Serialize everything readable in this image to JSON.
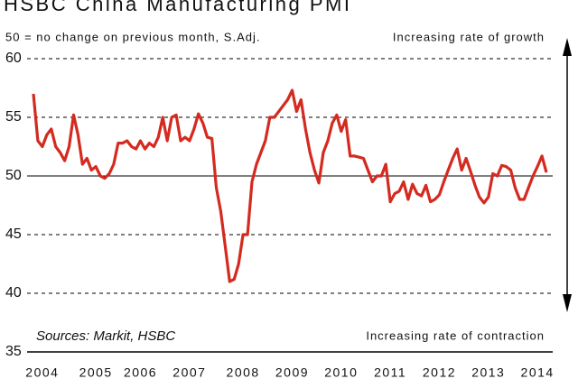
{
  "chart_data": {
    "type": "line",
    "title": "HSBC China Manufacturing PMI",
    "subtitle": "50 = no change on previous month, S.Adj.",
    "annotations": {
      "growth": "Increasing rate of growth",
      "contraction": "Increasing rate of contraction",
      "source": "Sources: Markit, HSBC"
    },
    "categories": [
      null,
      null,
      "2004",
      null,
      null,
      null,
      null,
      null,
      null,
      null,
      null,
      null,
      null,
      null,
      "2005",
      null,
      null,
      null,
      null,
      null,
      null,
      null,
      null,
      null,
      "2006",
      null,
      null,
      null,
      null,
      null,
      null,
      null,
      null,
      null,
      null,
      "2007",
      null,
      null,
      null,
      null,
      null,
      null,
      null,
      null,
      null,
      null,
      null,
      "2008",
      null,
      null,
      null,
      null,
      null,
      null,
      null,
      null,
      null,
      null,
      "2009",
      null,
      null,
      null,
      null,
      null,
      null,
      null,
      null,
      null,
      null,
      "2010",
      null,
      null,
      null,
      null,
      null,
      null,
      null,
      null,
      null,
      null,
      "2011",
      null,
      null,
      null,
      null,
      null,
      null,
      null,
      null,
      null,
      null,
      "2012",
      null,
      null,
      null,
      null,
      null,
      null,
      null,
      null,
      null,
      null,
      "2013",
      null,
      null,
      null,
      null,
      null,
      null,
      null,
      null,
      null,
      null,
      "2014",
      null,
      null
    ],
    "series": [
      {
        "name": "PMI",
        "color": "#d42a20",
        "values": [
          57,
          53,
          52.5,
          53.5,
          54,
          52.5,
          52,
          51.3,
          52.5,
          55.2,
          53.5,
          51,
          51.5,
          50.5,
          50.8,
          50,
          49.8,
          50.2,
          51,
          52.8,
          52.8,
          53,
          52.5,
          52.3,
          53,
          52.3,
          52.8,
          52.5,
          53.3,
          55,
          53,
          55,
          55.2,
          53,
          53.3,
          53,
          54,
          55.3,
          54.5,
          53.3,
          53.2,
          49,
          47,
          44,
          41,
          41.2,
          42.5,
          45,
          45,
          49.5,
          51,
          52,
          53,
          55,
          55,
          55.5,
          56,
          56.5,
          57.3,
          55.5,
          56.5,
          54,
          52,
          50.5,
          49.4,
          52,
          53,
          54.5,
          55.2,
          53.8,
          54.8,
          51.7,
          51.7,
          51.6,
          51.5,
          50.5,
          49.5,
          50,
          50,
          51,
          47.8,
          48.5,
          48.7,
          49.5,
          48,
          49.3,
          48.5,
          48.3,
          49.2,
          47.8,
          48,
          48.4,
          49.5,
          50.5,
          51.5,
          52.3,
          50.5,
          51.5,
          50.4,
          49.2,
          48.2,
          47.7,
          48.2,
          50.2,
          50,
          50.9,
          50.8,
          50.5,
          49,
          48,
          48,
          49,
          50,
          50.8,
          51.7,
          50.3
        ]
      }
    ],
    "ylim": [
      35,
      60
    ],
    "yticks": [
      35,
      40,
      45,
      50,
      55,
      60
    ],
    "grid": true,
    "reference_line": 50
  }
}
